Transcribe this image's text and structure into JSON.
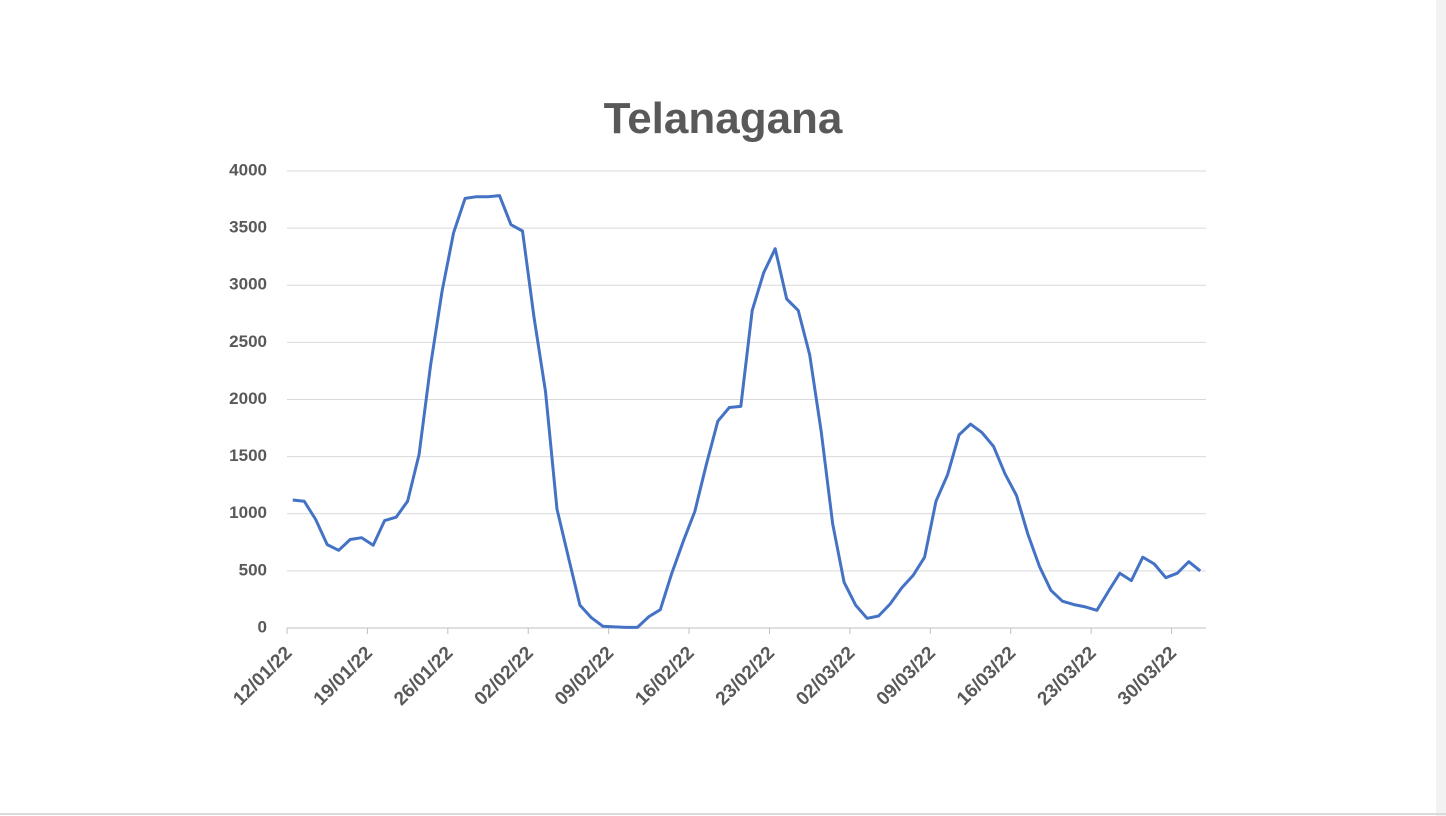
{
  "chart_data": {
    "type": "line",
    "title": "Telanagana",
    "categories": [
      "12/01/22",
      null,
      null,
      null,
      null,
      null,
      null,
      "19/01/22",
      null,
      null,
      null,
      null,
      null,
      null,
      "26/01/22",
      null,
      null,
      null,
      null,
      null,
      null,
      "02/02/22",
      null,
      null,
      null,
      null,
      null,
      null,
      "09/02/22",
      null,
      null,
      null,
      null,
      null,
      null,
      "16/02/22",
      null,
      null,
      null,
      null,
      null,
      null,
      "23/02/22",
      null,
      null,
      null,
      null,
      null,
      null,
      "02/03/22",
      null,
      null,
      null,
      null,
      null,
      null,
      "09/03/22",
      null,
      null,
      null,
      null,
      null,
      null,
      "16/03/22",
      null,
      null,
      null,
      null,
      null,
      null,
      "23/03/22",
      null,
      null,
      null,
      null,
      null,
      null,
      "30/03/22",
      null,
      null
    ],
    "series": [
      {
        "name": "Telanagana",
        "color": "#4472c4",
        "values": [
          1120,
          1110,
          950,
          730,
          680,
          775,
          790,
          725,
          940,
          970,
          1110,
          1520,
          2300,
          2950,
          3460,
          3760,
          3775,
          3775,
          3785,
          3530,
          3475,
          2720,
          2070,
          1040,
          620,
          200,
          90,
          15,
          10,
          5,
          5,
          100,
          160,
          480,
          760,
          1020,
          1430,
          1810,
          1930,
          1940,
          2780,
          3110,
          3320,
          2880,
          2780,
          2390,
          1720,
          910,
          400,
          200,
          85,
          105,
          210,
          350,
          460,
          620,
          1110,
          1340,
          1690,
          1785,
          1710,
          1590,
          1350,
          1160,
          820,
          540,
          330,
          235,
          205,
          185,
          155,
          320,
          480,
          415,
          620,
          560,
          440,
          480,
          580,
          500
        ]
      }
    ],
    "ylim": [
      0,
      4000
    ],
    "yticks": [
      0,
      500,
      1000,
      1500,
      2000,
      2500,
      3000,
      3500,
      4000
    ],
    "grid": true
  }
}
